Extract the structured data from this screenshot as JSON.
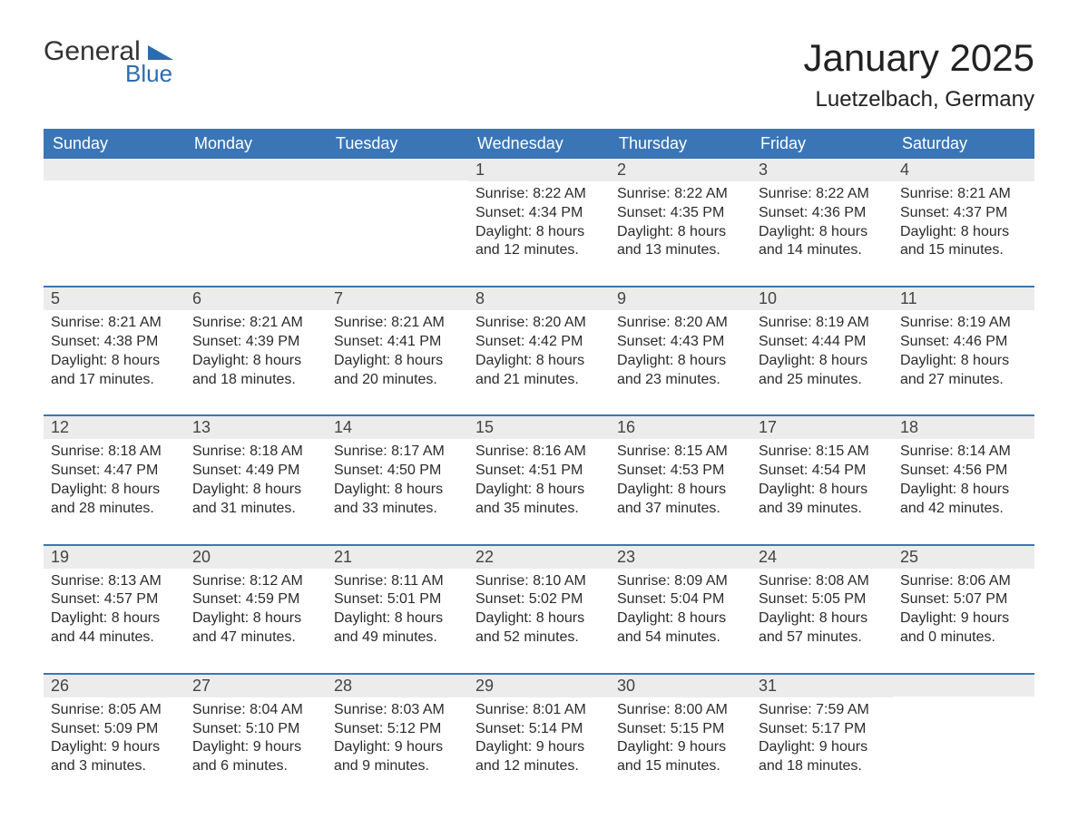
{
  "brand": {
    "word1": "General",
    "word2": "Blue"
  },
  "title": "January 2025",
  "location": "Luetzelbach, Germany",
  "colors": {
    "header_bg": "#3a76b6",
    "header_text": "#ffffff",
    "daynum_bg": "#ececec",
    "row_border": "#3a76b6",
    "brand_blue": "#2b6cb0",
    "text": "#2b2b2b",
    "background": "#ffffff"
  },
  "typography": {
    "title_fontsize": 42,
    "location_fontsize": 24,
    "header_fontsize": 18,
    "daynum_fontsize": 18,
    "body_fontsize": 16
  },
  "weekdays": [
    "Sunday",
    "Monday",
    "Tuesday",
    "Wednesday",
    "Thursday",
    "Friday",
    "Saturday"
  ],
  "weeks": [
    [
      {
        "n": "",
        "lines": [
          "",
          "",
          "",
          ""
        ]
      },
      {
        "n": "",
        "lines": [
          "",
          "",
          "",
          ""
        ]
      },
      {
        "n": "",
        "lines": [
          "",
          "",
          "",
          ""
        ]
      },
      {
        "n": "1",
        "lines": [
          "Sunrise: 8:22 AM",
          "Sunset: 4:34 PM",
          "Daylight: 8 hours",
          "and 12 minutes."
        ]
      },
      {
        "n": "2",
        "lines": [
          "Sunrise: 8:22 AM",
          "Sunset: 4:35 PM",
          "Daylight: 8 hours",
          "and 13 minutes."
        ]
      },
      {
        "n": "3",
        "lines": [
          "Sunrise: 8:22 AM",
          "Sunset: 4:36 PM",
          "Daylight: 8 hours",
          "and 14 minutes."
        ]
      },
      {
        "n": "4",
        "lines": [
          "Sunrise: 8:21 AM",
          "Sunset: 4:37 PM",
          "Daylight: 8 hours",
          "and 15 minutes."
        ]
      }
    ],
    [
      {
        "n": "5",
        "lines": [
          "Sunrise: 8:21 AM",
          "Sunset: 4:38 PM",
          "Daylight: 8 hours",
          "and 17 minutes."
        ]
      },
      {
        "n": "6",
        "lines": [
          "Sunrise: 8:21 AM",
          "Sunset: 4:39 PM",
          "Daylight: 8 hours",
          "and 18 minutes."
        ]
      },
      {
        "n": "7",
        "lines": [
          "Sunrise: 8:21 AM",
          "Sunset: 4:41 PM",
          "Daylight: 8 hours",
          "and 20 minutes."
        ]
      },
      {
        "n": "8",
        "lines": [
          "Sunrise: 8:20 AM",
          "Sunset: 4:42 PM",
          "Daylight: 8 hours",
          "and 21 minutes."
        ]
      },
      {
        "n": "9",
        "lines": [
          "Sunrise: 8:20 AM",
          "Sunset: 4:43 PM",
          "Daylight: 8 hours",
          "and 23 minutes."
        ]
      },
      {
        "n": "10",
        "lines": [
          "Sunrise: 8:19 AM",
          "Sunset: 4:44 PM",
          "Daylight: 8 hours",
          "and 25 minutes."
        ]
      },
      {
        "n": "11",
        "lines": [
          "Sunrise: 8:19 AM",
          "Sunset: 4:46 PM",
          "Daylight: 8 hours",
          "and 27 minutes."
        ]
      }
    ],
    [
      {
        "n": "12",
        "lines": [
          "Sunrise: 8:18 AM",
          "Sunset: 4:47 PM",
          "Daylight: 8 hours",
          "and 28 minutes."
        ]
      },
      {
        "n": "13",
        "lines": [
          "Sunrise: 8:18 AM",
          "Sunset: 4:49 PM",
          "Daylight: 8 hours",
          "and 31 minutes."
        ]
      },
      {
        "n": "14",
        "lines": [
          "Sunrise: 8:17 AM",
          "Sunset: 4:50 PM",
          "Daylight: 8 hours",
          "and 33 minutes."
        ]
      },
      {
        "n": "15",
        "lines": [
          "Sunrise: 8:16 AM",
          "Sunset: 4:51 PM",
          "Daylight: 8 hours",
          "and 35 minutes."
        ]
      },
      {
        "n": "16",
        "lines": [
          "Sunrise: 8:15 AM",
          "Sunset: 4:53 PM",
          "Daylight: 8 hours",
          "and 37 minutes."
        ]
      },
      {
        "n": "17",
        "lines": [
          "Sunrise: 8:15 AM",
          "Sunset: 4:54 PM",
          "Daylight: 8 hours",
          "and 39 minutes."
        ]
      },
      {
        "n": "18",
        "lines": [
          "Sunrise: 8:14 AM",
          "Sunset: 4:56 PM",
          "Daylight: 8 hours",
          "and 42 minutes."
        ]
      }
    ],
    [
      {
        "n": "19",
        "lines": [
          "Sunrise: 8:13 AM",
          "Sunset: 4:57 PM",
          "Daylight: 8 hours",
          "and 44 minutes."
        ]
      },
      {
        "n": "20",
        "lines": [
          "Sunrise: 8:12 AM",
          "Sunset: 4:59 PM",
          "Daylight: 8 hours",
          "and 47 minutes."
        ]
      },
      {
        "n": "21",
        "lines": [
          "Sunrise: 8:11 AM",
          "Sunset: 5:01 PM",
          "Daylight: 8 hours",
          "and 49 minutes."
        ]
      },
      {
        "n": "22",
        "lines": [
          "Sunrise: 8:10 AM",
          "Sunset: 5:02 PM",
          "Daylight: 8 hours",
          "and 52 minutes."
        ]
      },
      {
        "n": "23",
        "lines": [
          "Sunrise: 8:09 AM",
          "Sunset: 5:04 PM",
          "Daylight: 8 hours",
          "and 54 minutes."
        ]
      },
      {
        "n": "24",
        "lines": [
          "Sunrise: 8:08 AM",
          "Sunset: 5:05 PM",
          "Daylight: 8 hours",
          "and 57 minutes."
        ]
      },
      {
        "n": "25",
        "lines": [
          "Sunrise: 8:06 AM",
          "Sunset: 5:07 PM",
          "Daylight: 9 hours",
          "and 0 minutes."
        ]
      }
    ],
    [
      {
        "n": "26",
        "lines": [
          "Sunrise: 8:05 AM",
          "Sunset: 5:09 PM",
          "Daylight: 9 hours",
          "and 3 minutes."
        ]
      },
      {
        "n": "27",
        "lines": [
          "Sunrise: 8:04 AM",
          "Sunset: 5:10 PM",
          "Daylight: 9 hours",
          "and 6 minutes."
        ]
      },
      {
        "n": "28",
        "lines": [
          "Sunrise: 8:03 AM",
          "Sunset: 5:12 PM",
          "Daylight: 9 hours",
          "and 9 minutes."
        ]
      },
      {
        "n": "29",
        "lines": [
          "Sunrise: 8:01 AM",
          "Sunset: 5:14 PM",
          "Daylight: 9 hours",
          "and 12 minutes."
        ]
      },
      {
        "n": "30",
        "lines": [
          "Sunrise: 8:00 AM",
          "Sunset: 5:15 PM",
          "Daylight: 9 hours",
          "and 15 minutes."
        ]
      },
      {
        "n": "31",
        "lines": [
          "Sunrise: 7:59 AM",
          "Sunset: 5:17 PM",
          "Daylight: 9 hours",
          "and 18 minutes."
        ]
      },
      {
        "n": "",
        "lines": [
          "",
          "",
          "",
          ""
        ]
      }
    ]
  ]
}
